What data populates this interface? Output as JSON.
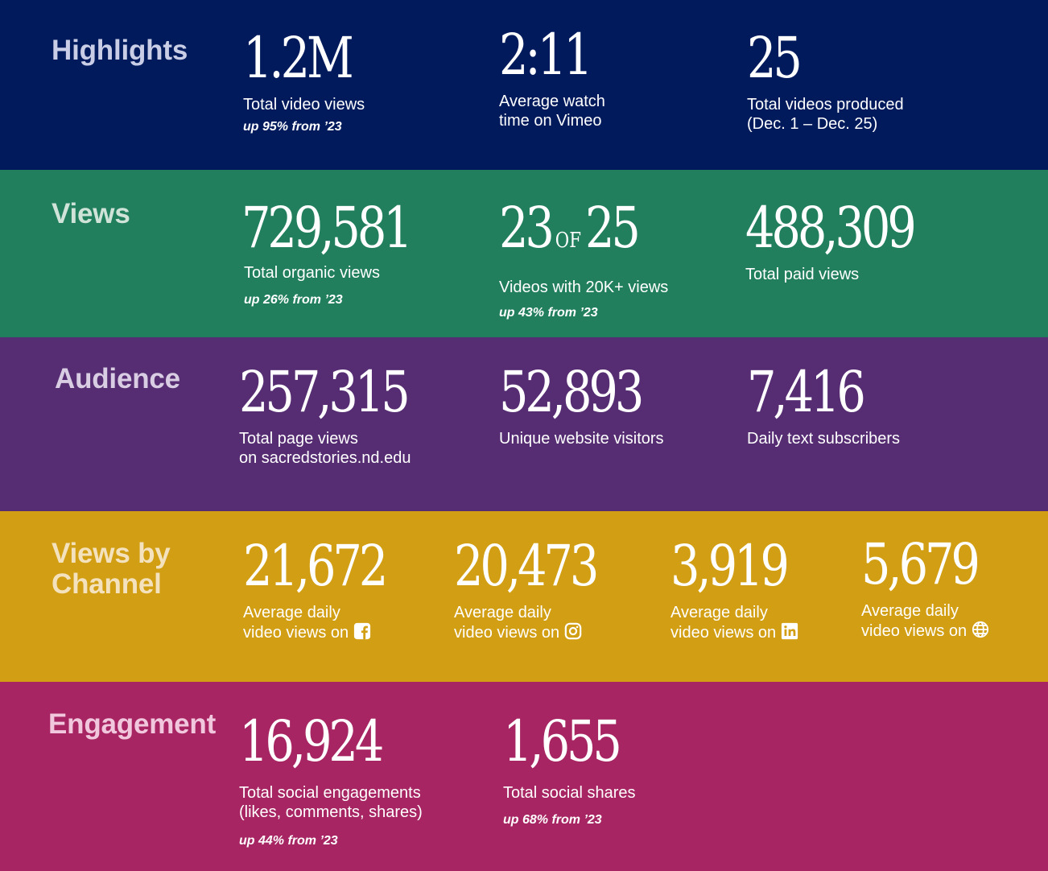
{
  "colors": {
    "highlights_bg": "#001a5c",
    "views_bg": "#217f5d",
    "audience_bg": "#562d72",
    "channel_bg": "#d29e13",
    "engagement_bg": "#a62562",
    "highlights_title": "#c9cde6",
    "views_title": "#cfe3d9",
    "audience_title": "#d8cde3",
    "channel_title": "#f3e2bd",
    "engagement_title": "#f1c7dd"
  },
  "highlights": {
    "title": "Highlights",
    "stats": [
      {
        "value": "1.2M",
        "label": "Total video views",
        "change": "up 95% from ’23"
      },
      {
        "value": "2:11",
        "label": "Average watch\ntime on Vimeo"
      },
      {
        "value": "25",
        "label": "Total videos produced\n(Dec. 1 – Dec. 25)"
      }
    ]
  },
  "views": {
    "title": "Views",
    "stats": [
      {
        "value": "729,581",
        "label": "Total organic views",
        "change": "up 26% from ’23"
      },
      {
        "value_a": "23",
        "value_of": "OF",
        "value_b": "25",
        "label": "Videos with 20K+ views",
        "change": "up 43% from ’23"
      },
      {
        "value": "488,309",
        "label": "Total paid views"
      }
    ]
  },
  "audience": {
    "title": "Audience",
    "stats": [
      {
        "value": "257,315",
        "label": "Total page views\non sacredstories.nd.edu"
      },
      {
        "value": "52,893",
        "label": "Unique website visitors"
      },
      {
        "value": "7,416",
        "label": "Daily text subscribers"
      }
    ]
  },
  "channel": {
    "title": "Views by\nChannel",
    "stats": [
      {
        "value": "21,672",
        "label_line1": "Average daily",
        "label_line2": "video views on",
        "icon": "facebook-icon"
      },
      {
        "value": "20,473",
        "label_line1": "Average daily",
        "label_line2": "video views on",
        "icon": "instagram-icon"
      },
      {
        "value": "3,919",
        "label_line1": "Average daily",
        "label_line2": "video views on",
        "icon": "linkedin-icon"
      },
      {
        "value": "5,679",
        "label_line1": "Average daily",
        "label_line2": "video views on",
        "icon": "globe-icon"
      }
    ]
  },
  "engagement": {
    "title": "Engagement",
    "stats": [
      {
        "value": "16,924",
        "label": "Total social engagements\n(likes, comments, shares)",
        "change": "up 44% from ’23"
      },
      {
        "value": "1,655",
        "label": "Total social shares",
        "change": "up 68% from ’23"
      }
    ]
  }
}
